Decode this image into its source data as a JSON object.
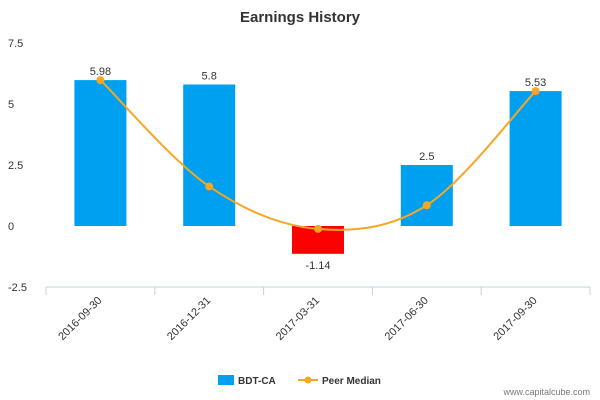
{
  "chart_data": {
    "type": "bar",
    "title": "Earnings History",
    "categories": [
      "2016-09-30",
      "2016-12-31",
      "2017-03-31",
      "2017-06-30",
      "2017-09-30"
    ],
    "series": [
      {
        "name": "BDT-CA",
        "type": "bar",
        "values": [
          5.98,
          5.8,
          -1.14,
          2.5,
          5.53
        ],
        "data_labels": [
          "5.98",
          "5.8",
          "-1.14",
          "2.5",
          "5.53"
        ],
        "color": "#00a0f0",
        "negative_color": "#ff0000"
      },
      {
        "name": "Peer Median",
        "type": "line",
        "smooth": true,
        "values": [
          5.98,
          1.62,
          -0.12,
          0.85,
          5.53
        ],
        "color": "#f5a623"
      }
    ],
    "y_ticks": [
      "7.5",
      "5",
      "2.5",
      "0",
      "-2.5"
    ],
    "ylim": [
      -2.5,
      7.5
    ],
    "grid": false,
    "legend": "bottom-center"
  },
  "credit": "www.capitalcube.com"
}
